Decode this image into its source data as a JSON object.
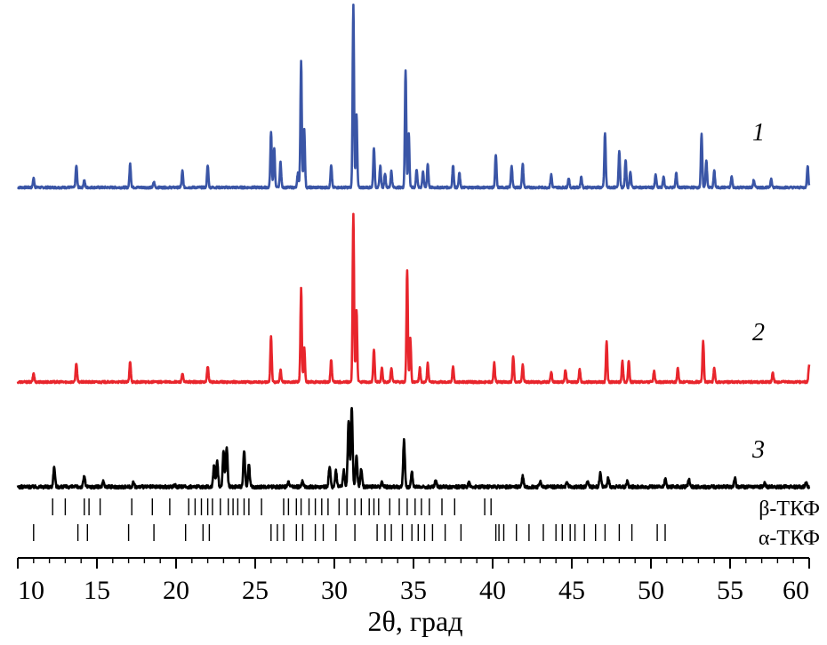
{
  "chart_data": {
    "type": "line",
    "xlabel": "2θ, град",
    "xlim": [
      10,
      60
    ],
    "xticks": [
      10,
      15,
      20,
      25,
      30,
      35,
      40,
      45,
      50,
      55,
      60
    ],
    "grid": false,
    "series": [
      {
        "name": "1",
        "color": "#3a55a6",
        "peaks": [
          [
            11.0,
            0.05
          ],
          [
            13.7,
            0.12
          ],
          [
            14.2,
            0.04
          ],
          [
            17.1,
            0.13
          ],
          [
            18.6,
            0.03
          ],
          [
            20.4,
            0.09
          ],
          [
            22.0,
            0.12
          ],
          [
            26.0,
            0.3
          ],
          [
            26.2,
            0.22
          ],
          [
            26.6,
            0.14
          ],
          [
            27.7,
            0.08
          ],
          [
            27.9,
            0.7
          ],
          [
            28.1,
            0.32
          ],
          [
            29.8,
            0.12
          ],
          [
            31.2,
            1.0
          ],
          [
            31.4,
            0.4
          ],
          [
            32.5,
            0.22
          ],
          [
            32.9,
            0.12
          ],
          [
            33.2,
            0.08
          ],
          [
            33.6,
            0.09
          ],
          [
            34.5,
            0.64
          ],
          [
            34.7,
            0.3
          ],
          [
            35.2,
            0.1
          ],
          [
            35.6,
            0.09
          ],
          [
            35.9,
            0.13
          ],
          [
            37.5,
            0.12
          ],
          [
            37.9,
            0.08
          ],
          [
            40.2,
            0.18
          ],
          [
            41.2,
            0.12
          ],
          [
            41.9,
            0.13
          ],
          [
            43.7,
            0.07
          ],
          [
            44.8,
            0.05
          ],
          [
            45.6,
            0.06
          ],
          [
            47.1,
            0.3
          ],
          [
            48.0,
            0.2
          ],
          [
            48.4,
            0.15
          ],
          [
            48.7,
            0.09
          ],
          [
            50.3,
            0.07
          ],
          [
            50.8,
            0.06
          ],
          [
            51.6,
            0.08
          ],
          [
            53.2,
            0.29
          ],
          [
            53.5,
            0.15
          ],
          [
            54.0,
            0.09
          ],
          [
            55.1,
            0.06
          ],
          [
            56.5,
            0.04
          ],
          [
            57.6,
            0.05
          ],
          [
            59.9,
            0.12
          ]
        ]
      },
      {
        "name": "2",
        "color": "#e8252c",
        "peaks": [
          [
            11.0,
            0.05
          ],
          [
            13.7,
            0.11
          ],
          [
            17.1,
            0.12
          ],
          [
            20.4,
            0.05
          ],
          [
            22.0,
            0.09
          ],
          [
            26.0,
            0.26
          ],
          [
            26.6,
            0.07
          ],
          [
            27.9,
            0.54
          ],
          [
            28.1,
            0.2
          ],
          [
            29.8,
            0.13
          ],
          [
            31.2,
            0.97
          ],
          [
            31.4,
            0.42
          ],
          [
            32.5,
            0.19
          ],
          [
            33.0,
            0.08
          ],
          [
            33.6,
            0.08
          ],
          [
            34.6,
            0.65
          ],
          [
            34.8,
            0.25
          ],
          [
            35.4,
            0.08
          ],
          [
            35.9,
            0.11
          ],
          [
            37.5,
            0.09
          ],
          [
            40.1,
            0.11
          ],
          [
            41.3,
            0.15
          ],
          [
            41.9,
            0.1
          ],
          [
            43.7,
            0.06
          ],
          [
            44.6,
            0.07
          ],
          [
            45.5,
            0.07
          ],
          [
            47.2,
            0.23
          ],
          [
            48.2,
            0.12
          ],
          [
            48.6,
            0.12
          ],
          [
            50.2,
            0.06
          ],
          [
            51.7,
            0.08
          ],
          [
            53.3,
            0.24
          ],
          [
            54.0,
            0.08
          ],
          [
            57.7,
            0.05
          ],
          [
            60.0,
            0.1
          ]
        ]
      },
      {
        "name": "3",
        "color": "#000000",
        "peaks": [
          [
            12.3,
            0.22
          ],
          [
            14.2,
            0.12
          ],
          [
            15.4,
            0.06
          ],
          [
            17.3,
            0.05
          ],
          [
            19.9,
            0.03
          ],
          [
            22.4,
            0.25
          ],
          [
            22.6,
            0.28
          ],
          [
            23.0,
            0.4
          ],
          [
            23.2,
            0.45
          ],
          [
            24.3,
            0.4
          ],
          [
            24.6,
            0.25
          ],
          [
            27.1,
            0.05
          ],
          [
            28.0,
            0.07
          ],
          [
            29.7,
            0.23
          ],
          [
            30.1,
            0.18
          ],
          [
            30.6,
            0.18
          ],
          [
            30.9,
            0.75
          ],
          [
            31.1,
            0.9
          ],
          [
            31.4,
            0.35
          ],
          [
            31.7,
            0.2
          ],
          [
            33.0,
            0.05
          ],
          [
            34.4,
            0.52
          ],
          [
            34.9,
            0.16
          ],
          [
            36.4,
            0.07
          ],
          [
            38.5,
            0.05
          ],
          [
            41.9,
            0.12
          ],
          [
            43.0,
            0.06
          ],
          [
            44.7,
            0.05
          ],
          [
            46.0,
            0.07
          ],
          [
            46.8,
            0.15
          ],
          [
            47.3,
            0.1
          ],
          [
            48.5,
            0.06
          ],
          [
            50.9,
            0.09
          ],
          [
            52.4,
            0.08
          ],
          [
            55.3,
            0.1
          ],
          [
            57.2,
            0.04
          ],
          [
            59.8,
            0.05
          ]
        ]
      }
    ],
    "reference_ticks": [
      {
        "label": "β-ТКФ",
        "positions": [
          12.2,
          13.0,
          14.2,
          14.5,
          15.2,
          17.2,
          18.5,
          19.6,
          20.8,
          21.2,
          21.6,
          22.0,
          22.3,
          22.8,
          23.3,
          23.6,
          23.9,
          24.3,
          24.6,
          25.4,
          26.8,
          27.1,
          27.6,
          27.9,
          28.4,
          28.8,
          29.2,
          29.6,
          30.3,
          30.8,
          31.3,
          31.7,
          32.2,
          32.5,
          32.8,
          33.5,
          34.1,
          34.6,
          35.1,
          35.5,
          36.0,
          36.8,
          37.6,
          39.5,
          39.9
        ]
      },
      {
        "label": "α-ТКФ",
        "positions": [
          11.0,
          13.8,
          14.4,
          17.0,
          18.6,
          20.6,
          21.7,
          22.1,
          26.0,
          26.4,
          26.8,
          27.6,
          28.0,
          28.8,
          29.3,
          30.1,
          31.3,
          32.7,
          33.2,
          33.6,
          34.3,
          34.9,
          35.3,
          35.7,
          36.2,
          37.0,
          38.0,
          40.2,
          40.4,
          40.7,
          41.5,
          42.3,
          43.2,
          44.0,
          44.4,
          44.9,
          45.2,
          45.8,
          46.5,
          47.1,
          48.0,
          48.8,
          50.4,
          50.9
        ]
      }
    ]
  }
}
